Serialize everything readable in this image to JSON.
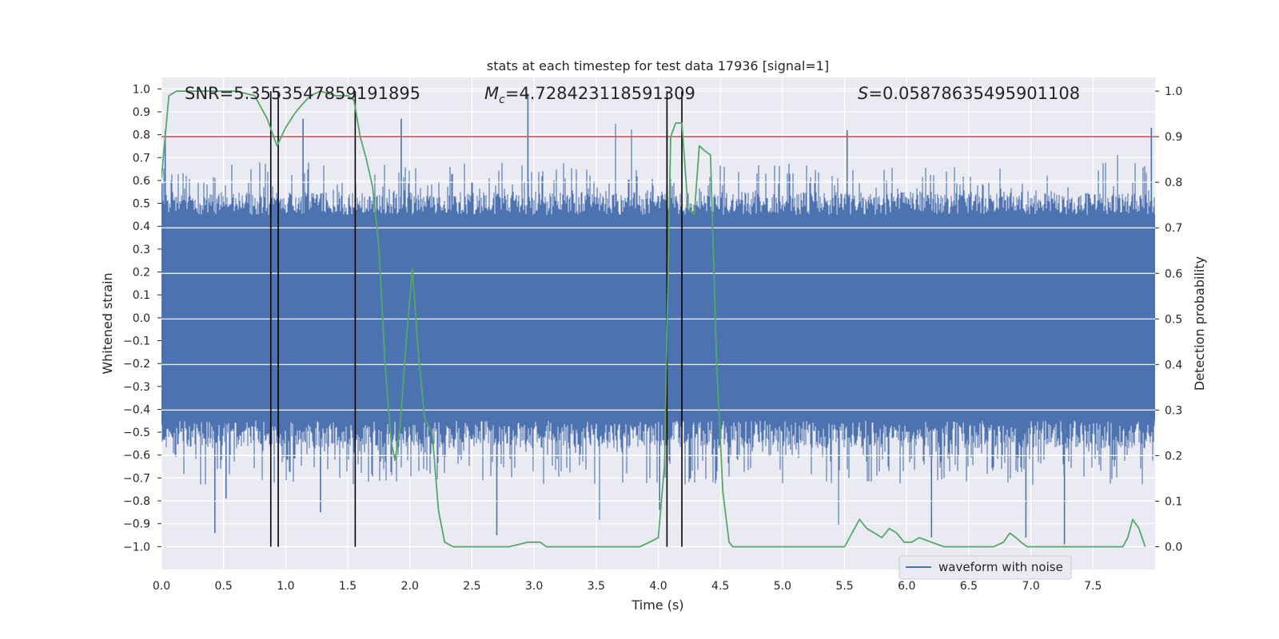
{
  "chart_data": {
    "type": "line",
    "title": "stats at each timestep for test data 17936 [signal=1]",
    "xlabel": "Time (s)",
    "ylabel": "Whitened strain",
    "y2label": "Detection probability",
    "xlim": [
      0.0,
      8.0
    ],
    "ylim": [
      -1.1,
      1.05
    ],
    "y2lim": [
      -0.05,
      1.03
    ],
    "xticks": [
      "0.0",
      "0.5",
      "1.0",
      "1.5",
      "2.0",
      "2.5",
      "3.0",
      "3.5",
      "4.0",
      "4.5",
      "5.0",
      "5.5",
      "6.0",
      "6.5",
      "7.0",
      "7.5"
    ],
    "yticks": [
      "1.0",
      "0.9",
      "0.8",
      "0.7",
      "0.6",
      "0.5",
      "0.4",
      "0.3",
      "0.2",
      "0.1",
      "0.0",
      "−0.1",
      "−0.2",
      "−0.3",
      "−0.4",
      "−0.5",
      "−0.6",
      "−0.7",
      "−0.8",
      "−0.9",
      "−1.0"
    ],
    "y2ticks": [
      "1.0",
      "0.9",
      "0.8",
      "0.7",
      "0.6",
      "0.5",
      "0.4",
      "0.3",
      "0.2",
      "0.1",
      "0.0"
    ],
    "annotations": {
      "snr": "SNR=5.3553547859191895",
      "mc_symbol": "M",
      "mc_sub": "c",
      "mc_value": "=4.728423118591309",
      "s_symbol": "S",
      "s_value": "=0.05878635495901108"
    },
    "legend": {
      "label": "waveform with noise",
      "position": "lower-right"
    },
    "threshold": {
      "y2": 0.9,
      "color": "#c44e52"
    },
    "vlines_x": [
      0.88,
      0.94,
      1.56,
      4.07,
      4.19
    ],
    "noise_band": {
      "core": 0.45,
      "tail_threshold": 0.985
    },
    "waveform_peaks": [
      {
        "x": 0.03,
        "y": 0.82
      },
      {
        "x": 1.14,
        "y": 0.87
      },
      {
        "x": 1.93,
        "y": 0.87
      },
      {
        "x": 2.95,
        "y": 0.98
      },
      {
        "x": 4.07,
        "y": 0.82
      },
      {
        "x": 5.52,
        "y": 0.82
      },
      {
        "x": 7.97,
        "y": 0.83
      },
      {
        "x": 0.43,
        "y": -0.94
      },
      {
        "x": 0.52,
        "y": -0.79
      },
      {
        "x": 1.28,
        "y": -0.85
      },
      {
        "x": 2.7,
        "y": -0.95
      },
      {
        "x": 6.2,
        "y": -0.96
      },
      {
        "x": 6.96,
        "y": -0.96
      },
      {
        "x": 7.27,
        "y": -0.99
      },
      {
        "x": 4.01,
        "y": -0.84
      }
    ],
    "series": [
      {
        "name": "detection probability",
        "color": "#55a868",
        "axis": "y2",
        "x": [
          0.0,
          0.06,
          0.12,
          0.2,
          0.3,
          0.45,
          0.6,
          0.75,
          0.85,
          0.93,
          1.0,
          1.07,
          1.13,
          1.2,
          1.28,
          1.4,
          1.5,
          1.55,
          1.6,
          1.65,
          1.7,
          1.75,
          1.8,
          1.85,
          1.88,
          1.92,
          1.97,
          2.02,
          2.07,
          2.12,
          2.18,
          2.23,
          2.28,
          2.35,
          2.45,
          2.6,
          2.8,
          2.95,
          3.05,
          3.1,
          3.25,
          3.45,
          3.65,
          3.85,
          3.93,
          4.0,
          4.05,
          4.1,
          4.14,
          4.19,
          4.24,
          4.29,
          4.33,
          4.37,
          4.42,
          4.47,
          4.52,
          4.57,
          4.6,
          4.7,
          4.85,
          5.0,
          5.2,
          5.4,
          5.5,
          5.58,
          5.62,
          5.68,
          5.74,
          5.8,
          5.86,
          5.92,
          5.98,
          6.04,
          6.1,
          6.2,
          6.3,
          6.5,
          6.7,
          6.78,
          6.83,
          6.88,
          6.92,
          6.97,
          7.05,
          7.2,
          7.35,
          7.5,
          7.6,
          7.68,
          7.74,
          7.78,
          7.82,
          7.87,
          7.92
        ],
        "values": [
          0.81,
          0.99,
          1.0,
          1.0,
          1.0,
          1.0,
          1.0,
          0.99,
          0.94,
          0.88,
          0.92,
          0.95,
          0.97,
          0.99,
          1.0,
          0.99,
          0.99,
          0.98,
          0.9,
          0.85,
          0.79,
          0.66,
          0.4,
          0.23,
          0.19,
          0.26,
          0.45,
          0.61,
          0.42,
          0.28,
          0.25,
          0.08,
          0.01,
          0.0,
          0.0,
          0.0,
          0.0,
          0.01,
          0.01,
          0.0,
          0.0,
          0.0,
          0.0,
          0.0,
          0.01,
          0.02,
          0.18,
          0.9,
          0.93,
          0.93,
          0.74,
          0.73,
          0.88,
          0.87,
          0.86,
          0.4,
          0.12,
          0.01,
          0.0,
          0.0,
          0.0,
          0.0,
          0.0,
          0.0,
          0.0,
          0.04,
          0.06,
          0.04,
          0.03,
          0.02,
          0.04,
          0.03,
          0.01,
          0.01,
          0.02,
          0.01,
          0.0,
          0.0,
          0.0,
          0.01,
          0.03,
          0.02,
          0.01,
          0.0,
          0.0,
          0.0,
          0.0,
          0.0,
          0.0,
          0.0,
          0.0,
          0.02,
          0.06,
          0.04,
          0.0
        ]
      }
    ]
  }
}
